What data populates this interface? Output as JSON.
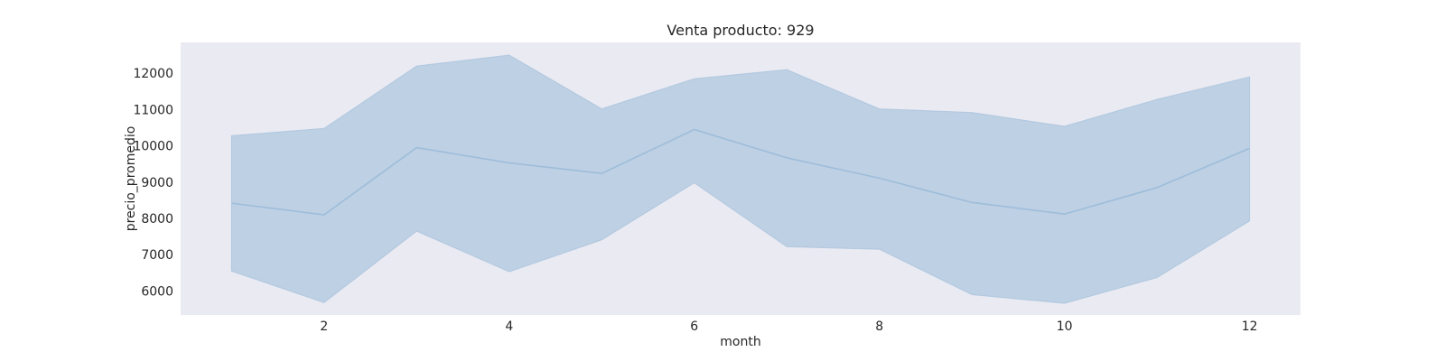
{
  "chart_data": {
    "type": "line",
    "title": "Venta producto: 929",
    "xlabel": "month",
    "ylabel": "precio_promedio",
    "x": [
      1,
      2,
      3,
      4,
      5,
      6,
      7,
      8,
      9,
      10,
      11,
      12
    ],
    "series": [
      {
        "values": [
          8420,
          8100,
          9950,
          9530,
          9240,
          10450,
          9670,
          9110,
          8440,
          8120,
          8850,
          9930
        ],
        "lower": [
          6550,
          5680,
          7650,
          6530,
          7410,
          8980,
          7220,
          7150,
          5900,
          5660,
          6370,
          7930
        ],
        "upper": [
          10280,
          10480,
          12200,
          12500,
          11020,
          11850,
          12100,
          11020,
          10920,
          10540,
          11280,
          11900
        ],
        "color": "#8fb3d9"
      }
    ],
    "xticks": [
      2,
      4,
      6,
      8,
      10,
      12
    ],
    "yticks": [
      6000,
      7000,
      8000,
      9000,
      10000,
      11000,
      12000
    ],
    "xlim": [
      0.45,
      12.55
    ],
    "ylim": [
      5340,
      12850
    ],
    "grid": false,
    "background": "#eaeaf2",
    "band_color": "#b3c9df",
    "line_color": "#9dbdda"
  }
}
